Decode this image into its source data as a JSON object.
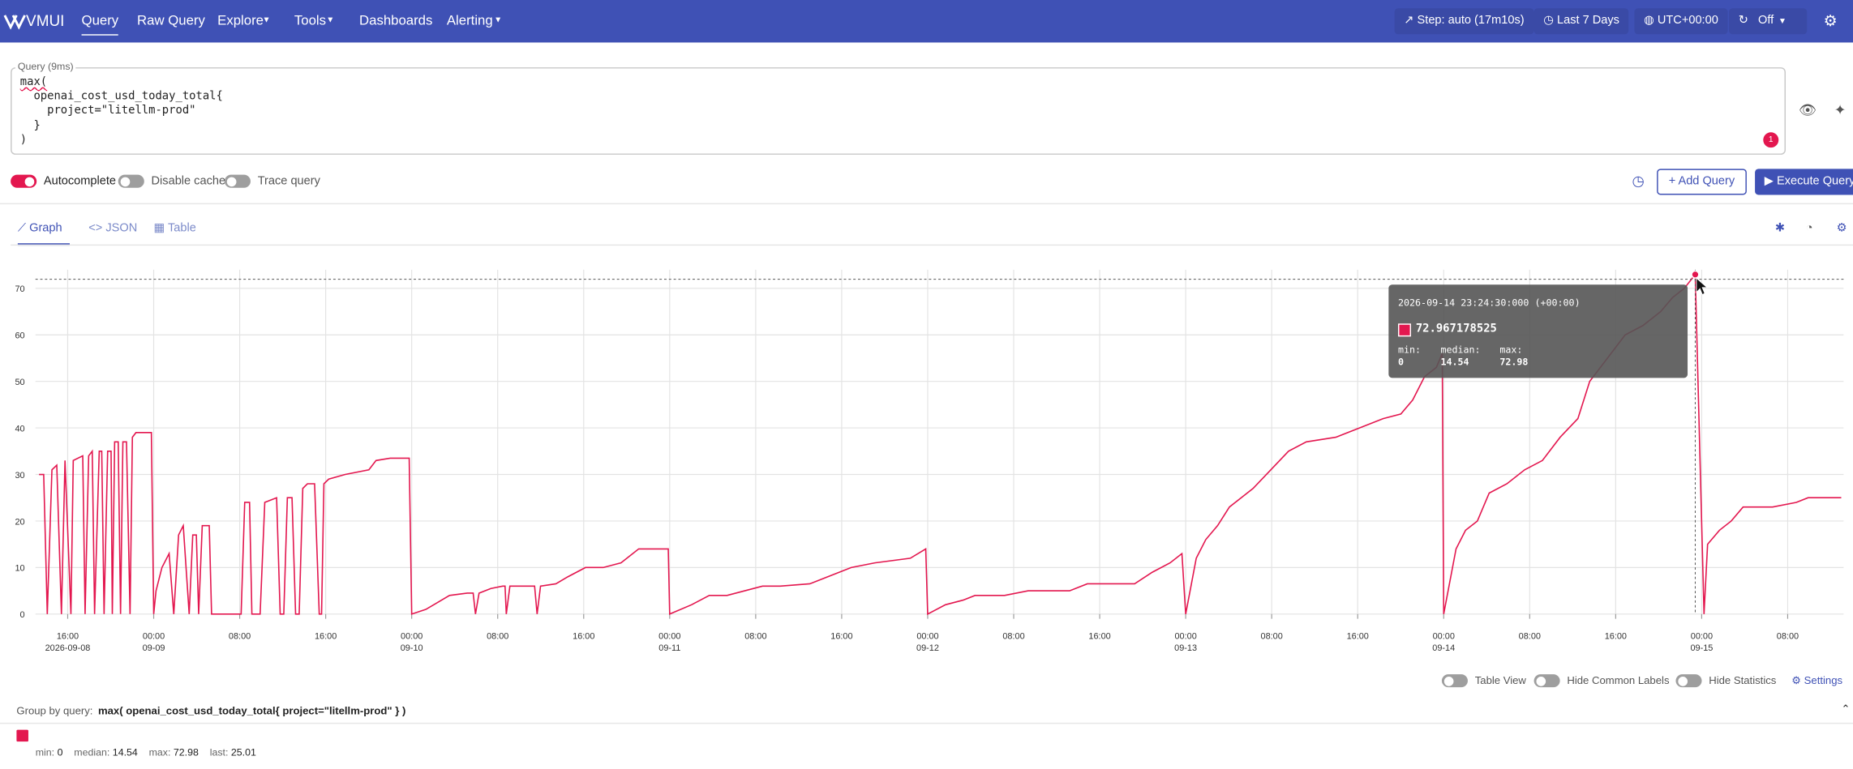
{
  "nav": {
    "logo": "VMUI",
    "items": [
      "Query",
      "Raw Query",
      "Explore",
      "Tools",
      "Dashboards",
      "Alerting"
    ],
    "step": "Step: auto (17m10s)",
    "range": "Last 7 Days",
    "timezone": "UTC+00:00",
    "refresh": "Off"
  },
  "query": {
    "label": "Query (9ms)",
    "lines": [
      "max(",
      "  openai_cost_usd_today_total{",
      "    project=\"litellm-prod\"",
      "  }",
      ")"
    ],
    "error_count": 1
  },
  "controls": {
    "switches": [
      "Autocomplete",
      "Disable cache",
      "Trace query"
    ],
    "add_query": "Add Query",
    "execute": "Execute Query"
  },
  "tabs": [
    "Graph",
    "JSON",
    "Table"
  ],
  "chart_data": {
    "type": "line",
    "color": "#e3174f",
    "grid": true,
    "xlim": [
      "2026-09-08 13:00",
      "2026-09-15 13:12"
    ],
    "ylim": [
      0,
      74
    ],
    "yticks": [
      0,
      10,
      20,
      30,
      40,
      50,
      60,
      70
    ],
    "xticks": [
      {
        "value": "2026-09-08 16:00",
        "label": [
          "16:00",
          "2026-09-08"
        ]
      },
      {
        "value": "2026-09-09 00:00",
        "label": [
          "00:00",
          "09-09"
        ]
      },
      {
        "value": "2026-09-09 08:00",
        "label": [
          "08:00"
        ]
      },
      {
        "value": "2026-09-09 16:00",
        "label": [
          "16:00"
        ]
      },
      {
        "value": "2026-09-10 00:00",
        "label": [
          "00:00",
          "09-10"
        ]
      },
      {
        "value": "2026-09-10 08:00",
        "label": [
          "08:00"
        ]
      },
      {
        "value": "2026-09-10 16:00",
        "label": [
          "16:00"
        ]
      },
      {
        "value": "2026-09-11 00:00",
        "label": [
          "00:00",
          "09-11"
        ]
      },
      {
        "value": "2026-09-11 08:00",
        "label": [
          "08:00"
        ]
      },
      {
        "value": "2026-09-11 16:00",
        "label": [
          "16:00"
        ]
      },
      {
        "value": "2026-09-12 00:00",
        "label": [
          "00:00",
          "09-12"
        ]
      },
      {
        "value": "2026-09-12 08:00",
        "label": [
          "08:00"
        ]
      },
      {
        "value": "2026-09-12 16:00",
        "label": [
          "16:00"
        ]
      },
      {
        "value": "2026-09-13 00:00",
        "label": [
          "00:00",
          "09-13"
        ]
      },
      {
        "value": "2026-09-13 08:00",
        "label": [
          "08:00"
        ]
      },
      {
        "value": "2026-09-13 16:00",
        "label": [
          "16:00"
        ]
      },
      {
        "value": "2026-09-14 00:00",
        "label": [
          "00:00",
          "09-14"
        ]
      },
      {
        "value": "2026-09-14 08:00",
        "label": [
          "08:00"
        ]
      },
      {
        "value": "2026-09-14 16:00",
        "label": [
          "16:00"
        ]
      },
      {
        "value": "2026-09-15 00:00",
        "label": [
          "00:00",
          "09-15"
        ]
      },
      {
        "value": "2026-09-15 08:00",
        "label": [
          "08:00"
        ]
      }
    ],
    "x": [
      "2026-09-08 13:20",
      "2026-09-08 13:46",
      "2026-09-08 14:06",
      "2026-09-08 14:32",
      "2026-09-08 14:59",
      "2026-09-08 15:25",
      "2026-09-08 15:45",
      "2026-09-08 16:18",
      "2026-09-08 16:31",
      "2026-09-08 17:24",
      "2026-09-08 17:37",
      "2026-09-08 17:57",
      "2026-09-08 18:17",
      "2026-09-08 18:30",
      "2026-09-08 18:56",
      "2026-09-08 19:10",
      "2026-09-08 19:23",
      "2026-09-08 19:43",
      "2026-09-08 20:02",
      "2026-09-08 20:09",
      "2026-09-08 20:22",
      "2026-09-08 20:42",
      "2026-09-08 20:55",
      "2026-09-08 21:08",
      "2026-09-08 21:28",
      "2026-09-08 21:48",
      "2026-09-08 22:01",
      "2026-09-08 22:21",
      "2026-09-08 23:47",
      "2026-09-09 00:00",
      "2026-09-09 00:13",
      "2026-09-09 00:46",
      "2026-09-09 01:26",
      "2026-09-09 01:52",
      "2026-09-09 02:19",
      "2026-09-09 02:45",
      "2026-09-09 03:18",
      "2026-09-09 03:38",
      "2026-09-09 03:58",
      "2026-09-09 04:11",
      "2026-09-09 04:31",
      "2026-09-09 05:10",
      "2026-09-09 05:23",
      "2026-09-09 08:08",
      "2026-09-09 08:28",
      "2026-09-09 08:55",
      "2026-09-09 09:08",
      "2026-09-09 09:54",
      "2026-09-09 10:20",
      "2026-09-09 11:26",
      "2026-09-09 11:46",
      "2026-09-09 12:06",
      "2026-09-09 12:26",
      "2026-09-09 12:52",
      "2026-09-09 13:12",
      "2026-09-09 13:32",
      "2026-09-09 13:52",
      "2026-09-09 14:18",
      "2026-09-09 14:58",
      "2026-09-09 15:24",
      "2026-09-09 15:37",
      "2026-09-09 15:50",
      "2026-09-09 16:17",
      "2026-09-09 17:49",
      "2026-09-09 20:01",
      "2026-09-09 20:41",
      "2026-09-09 22:00",
      "2026-09-09 23:46",
      "2026-09-10 00:00",
      "2026-09-10 01:19",
      "2026-09-10 02:25",
      "2026-09-10 03:31",
      "2026-09-10 05:10",
      "2026-09-10 05:43",
      "2026-09-10 05:56",
      "2026-09-10 06:16",
      "2026-09-10 07:22",
      "2026-09-10 08:28",
      "2026-09-10 08:41",
      "2026-09-10 08:48",
      "2026-09-10 09:08",
      "2026-09-10 11:26",
      "2026-09-10 11:40",
      "2026-09-10 11:59",
      "2026-09-10 13:25",
      "2026-09-10 14:31",
      "2026-09-10 16:10",
      "2026-09-10 17:49",
      "2026-09-10 19:28",
      "2026-09-10 21:07",
      "2026-09-10 23:52",
      "2026-09-11 00:00",
      "2026-09-11 02:02",
      "2026-09-11 03:41",
      "2026-09-11 05:20",
      "2026-09-11 06:59",
      "2026-09-11 08:38",
      "2026-09-11 10:17",
      "2026-09-11 13:02",
      "2026-09-11 14:41",
      "2026-09-11 16:53",
      "2026-09-11 19:05",
      "2026-09-11 22:23",
      "2026-09-11 23:49",
      "2026-09-12 00:00",
      "2026-09-12 01:39",
      "2026-09-12 03:18",
      "2026-09-12 04:24",
      "2026-09-12 07:09",
      "2026-09-12 09:21",
      "2026-09-12 13:12",
      "2026-09-12 14:51",
      "2026-09-12 19:15",
      "2026-09-12 20:54",
      "2026-09-12 22:33",
      "2026-09-12 23:39",
      "2026-09-13 00:00",
      "2026-09-13 00:59",
      "2026-09-13 01:52",
      "2026-09-13 02:58",
      "2026-09-13 04:04",
      "2026-09-13 05:10",
      "2026-09-13 06:16",
      "2026-09-13 07:55",
      "2026-09-13 09:34",
      "2026-09-13 11:13",
      "2026-09-13 13:58",
      "2026-09-13 16:10",
      "2026-09-13 18:22",
      "2026-09-13 20:01",
      "2026-09-13 21:07",
      "2026-09-13 22:13",
      "2026-09-13 23:19",
      "2026-09-13 23:52",
      "2026-09-14 00:00",
      "2026-09-14 01:09",
      "2026-09-14 02:02",
      "2026-09-14 03:08",
      "2026-09-14 04:14",
      "2026-09-14 05:53",
      "2026-09-14 07:32",
      "2026-09-14 09:11",
      "2026-09-14 10:50",
      "2026-09-14 12:29",
      "2026-09-14 13:35",
      "2026-09-14 15:14",
      "2026-09-14 16:53",
      "2026-09-14 18:32",
      "2026-09-14 20:11",
      "2026-09-14 21:17",
      "2026-09-14 22:23",
      "2026-09-14 23:24",
      "2026-09-15 00:13",
      "2026-09-15 00:33",
      "2026-09-15 01:39",
      "2026-09-15 02:45",
      "2026-09-15 03:51",
      "2026-09-15 06:36",
      "2026-09-15 08:48",
      "2026-09-15 09:54",
      "2026-09-15 12:59"
    ],
    "values": [
      30,
      30,
      0,
      31,
      32,
      0,
      33,
      0,
      33,
      34,
      0,
      34,
      35,
      0,
      35,
      35,
      0,
      35,
      35,
      0,
      37,
      37,
      0,
      37,
      37,
      0,
      38,
      39,
      39,
      0,
      5,
      10,
      13,
      0,
      17,
      19,
      0,
      17,
      17,
      0,
      19,
      19,
      0,
      0,
      24,
      24,
      0,
      0,
      24,
      25,
      0,
      0,
      25,
      25,
      0,
      0,
      27,
      28,
      28,
      0,
      0,
      28,
      29,
      30,
      31,
      33,
      33.5,
      33.5,
      0,
      1,
      2.5,
      4,
      4.5,
      4.5,
      0,
      4.5,
      5.5,
      6,
      6,
      0,
      6,
      6,
      0,
      6,
      6.5,
      8,
      10,
      10,
      11,
      14,
      14,
      0,
      2,
      4,
      4,
      5,
      6,
      6,
      6.5,
      8,
      10,
      11,
      12,
      14,
      0,
      2,
      3,
      4,
      4,
      5,
      5,
      6.5,
      6.5,
      9,
      11,
      13,
      0,
      12,
      16,
      19,
      23,
      25,
      27,
      31,
      35,
      37,
      38,
      40,
      42,
      43,
      46,
      51,
      53,
      56,
      0,
      14,
      18,
      20,
      26,
      28,
      31,
      33,
      38,
      42,
      50,
      55,
      60,
      62,
      65,
      68,
      70,
      72.967178525,
      0,
      15,
      18,
      20,
      23,
      23,
      24,
      25,
      25.01
    ]
  },
  "tooltip": {
    "time": "2026-09-14 23:24:30:000 (+00:00)",
    "stats": [
      {
        "label": "min:",
        "value": 0
      },
      {
        "label": "median:",
        "value": 14.54
      },
      {
        "label": "max:",
        "value": 72.98
      }
    ]
  },
  "options": [
    "Table View",
    "Hide Common Labels",
    "Hide Statistics",
    "Settings"
  ],
  "group_by": {
    "label": "Group by query:",
    "query": "max( openai_cost_usd_today_total{ project=\"litellm-prod\" } )"
  },
  "legend_stats": [
    {
      "label": "min:",
      "value": 0
    },
    {
      "label": "median:",
      "value": 14.54
    },
    {
      "label": "max:",
      "value": 72.98
    },
    {
      "label": "last:",
      "value": 25.01
    }
  ]
}
